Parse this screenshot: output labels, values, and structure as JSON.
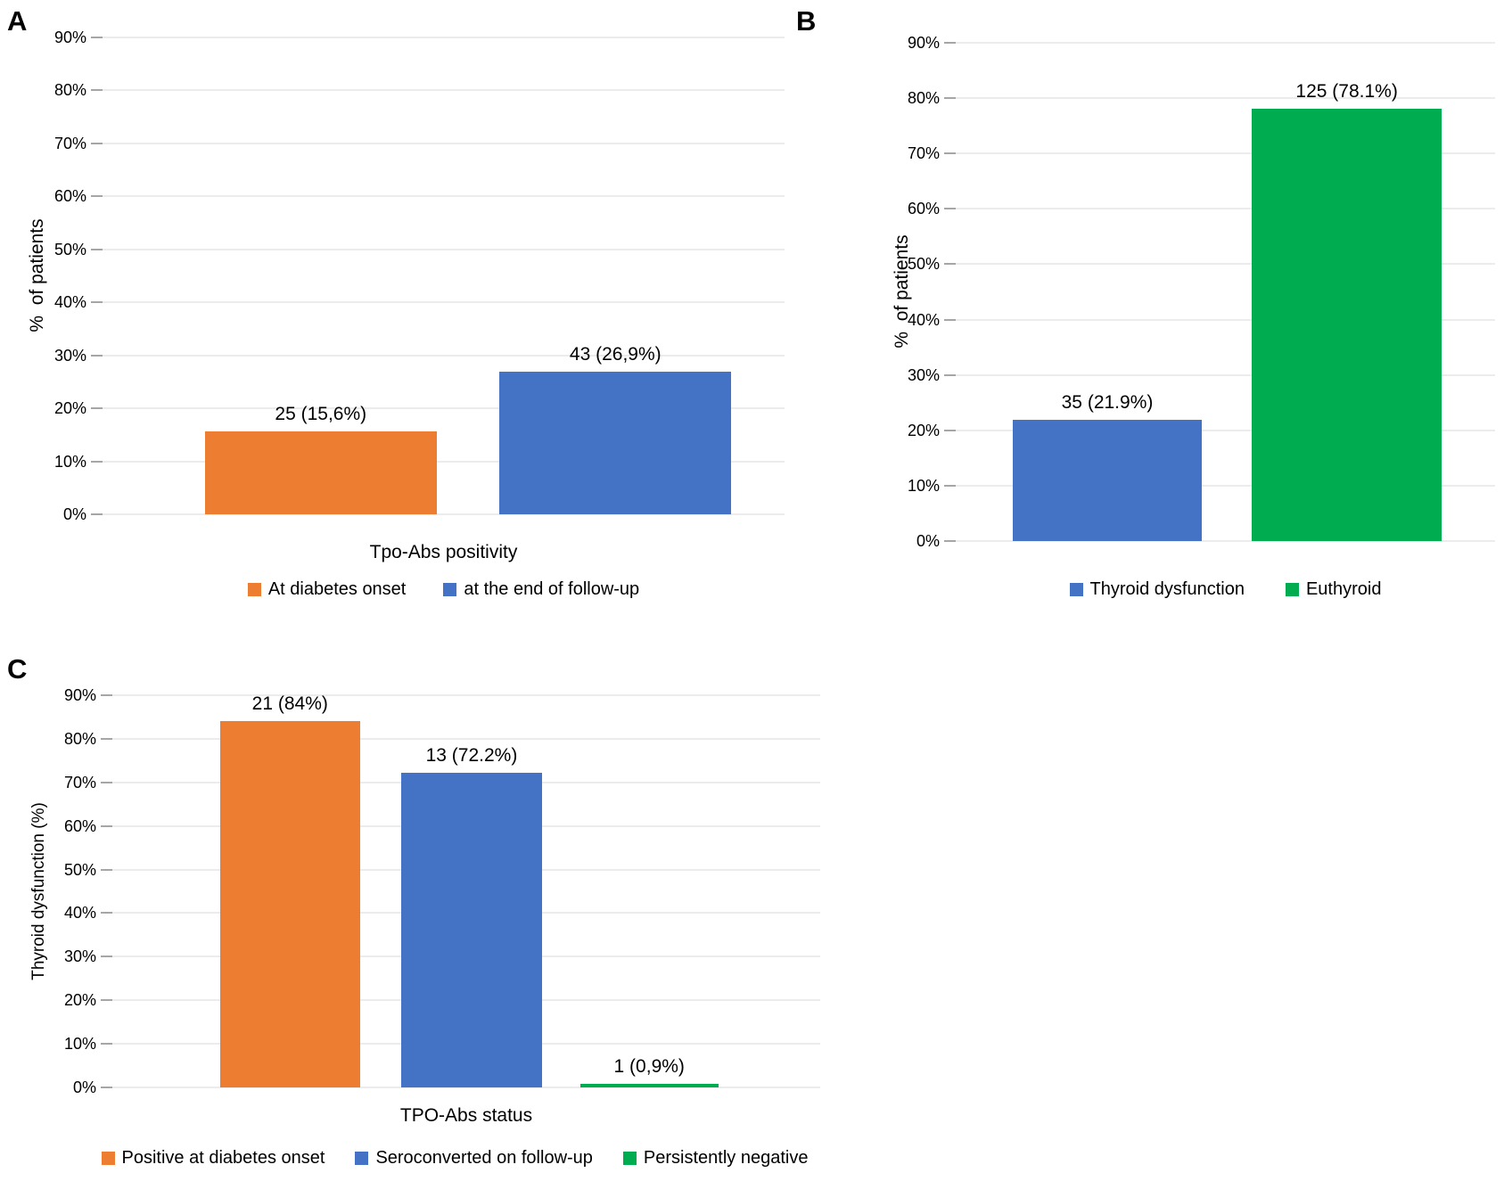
{
  "figure": {
    "background": "#ffffff"
  },
  "colors": {
    "orange": "#ED7D31",
    "blue": "#4472C4",
    "green": "#00AC50",
    "gridline": "#D9D9D9",
    "tickmark": "#A6A6A6",
    "text": "#000000"
  },
  "chart_data": [
    {
      "type": "bar",
      "panel_label": "A",
      "title": "",
      "ylabel": "%  of patients",
      "xlabel": "Tpo-Abs positivity",
      "ylim": [
        0,
        90
      ],
      "ytick_step": 10,
      "yticks": [
        "90%",
        "80%",
        "70%",
        "60%",
        "50%",
        "40%",
        "30%",
        "20%",
        "10%",
        "0%"
      ],
      "grid": true,
      "legend_position": "bottom",
      "bars": [
        {
          "series": "At diabetes onset",
          "count": 25,
          "value": 15.6,
          "data_label": "25 (15,6%)",
          "color_key": "orange",
          "left_pct": 15.0,
          "width_pct": 34.0
        },
        {
          "series": "at the end of follow-up",
          "count": 43,
          "value": 26.9,
          "data_label": "43 (26,9%)",
          "color_key": "blue",
          "left_pct": 58.2,
          "width_pct": 34.0
        }
      ],
      "legend": [
        {
          "label": "At diabetes onset",
          "color_key": "orange"
        },
        {
          "label": "at the end of follow-up",
          "color_key": "blue"
        }
      ]
    },
    {
      "type": "bar",
      "panel_label": "B",
      "title": "",
      "ylabel": "%  of patients",
      "xlabel": "",
      "ylim": [
        0,
        90
      ],
      "ytick_step": 10,
      "yticks": [
        "90%",
        "80%",
        "70%",
        "60%",
        "50%",
        "40%",
        "30%",
        "20%",
        "10%",
        "0%"
      ],
      "grid": true,
      "legend_position": "bottom",
      "bars": [
        {
          "series": "Thyroid dysfunction",
          "count": 35,
          "value": 21.9,
          "data_label": "35 (21.9%)",
          "color_key": "blue",
          "left_pct": 10.6,
          "width_pct": 35.0
        },
        {
          "series": "Euthyroid",
          "count": 125,
          "value": 78.1,
          "data_label": "125 (78.1%)",
          "color_key": "green",
          "left_pct": 54.9,
          "width_pct": 35.2
        }
      ],
      "legend": [
        {
          "label": "Thyroid dysfunction",
          "color_key": "blue"
        },
        {
          "label": "Euthyroid",
          "color_key": "green"
        }
      ]
    },
    {
      "type": "bar",
      "panel_label": "C",
      "title": "",
      "ylabel": "Thyroid dysfunction (%)",
      "xlabel": "TPO-Abs status",
      "ylim": [
        0,
        90
      ],
      "ytick_step": 10,
      "yticks": [
        "90%",
        "80%",
        "70%",
        "60%",
        "50%",
        "40%",
        "30%",
        "20%",
        "10%",
        "0%"
      ],
      "grid": true,
      "legend_position": "bottom",
      "bars": [
        {
          "series": "Positive at diabetes onset",
          "count": 21,
          "value": 84.0,
          "data_label": "21 (84%)",
          "color_key": "orange",
          "left_pct": 15.2,
          "width_pct": 19.8
        },
        {
          "series": "Seroconverted on follow-up",
          "count": 13,
          "value": 72.2,
          "data_label": "13 (72.2%)",
          "color_key": "blue",
          "left_pct": 40.8,
          "width_pct": 19.9
        },
        {
          "series": "Persistently negative",
          "count": 1,
          "value": 0.9,
          "data_label": "1 (0,9%)",
          "color_key": "green",
          "left_pct": 66.1,
          "width_pct": 19.5
        }
      ],
      "legend": [
        {
          "label": "Positive at diabetes onset",
          "color_key": "orange"
        },
        {
          "label": "Seroconverted on follow-up",
          "color_key": "blue"
        },
        {
          "label": "Persistently negative",
          "color_key": "green"
        }
      ]
    }
  ]
}
